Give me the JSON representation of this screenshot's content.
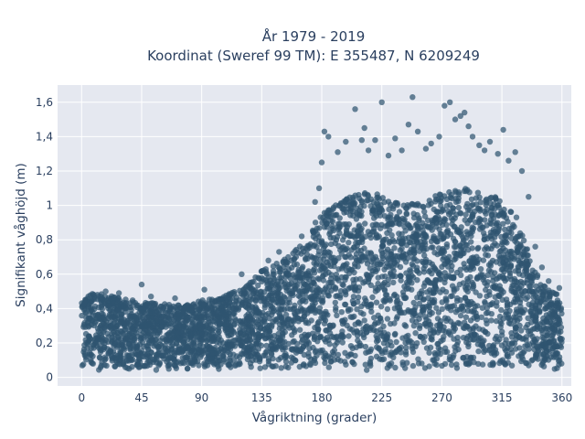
{
  "chart_data": {
    "type": "scatter",
    "title_lines": [
      "År 1979 - 2019",
      "Koordinat (Sweref 99 TM): E 355487, N 6209249"
    ],
    "xlabel": "Vågriktning (grader)",
    "ylabel": "Signifikant våghöjd (m)",
    "xlim": [
      -18,
      367
    ],
    "ylim": [
      -0.05,
      1.7
    ],
    "x_ticks": [
      0,
      45,
      90,
      135,
      180,
      225,
      270,
      315,
      360
    ],
    "y_ticks": [
      {
        "value": 0,
        "label": "0"
      },
      {
        "value": 0.2,
        "label": "0,2"
      },
      {
        "value": 0.4,
        "label": "0,4"
      },
      {
        "value": 0.6,
        "label": "0,6"
      },
      {
        "value": 0.8,
        "label": "0,8"
      },
      {
        "value": 1.0,
        "label": "1"
      },
      {
        "value": 1.2,
        "label": "1,2"
      },
      {
        "value": 1.4,
        "label": "1,4"
      },
      {
        "value": 1.6,
        "label": "1,6"
      }
    ],
    "grid": true,
    "background_color": "#e5e8f0",
    "grid_color": "#ffffff",
    "marker_color": "#2f5570",
    "envelope": [
      [
        0,
        0.45
      ],
      [
        10,
        0.5
      ],
      [
        20,
        0.48
      ],
      [
        30,
        0.46
      ],
      [
        45,
        0.44
      ],
      [
        60,
        0.43
      ],
      [
        75,
        0.42
      ],
      [
        90,
        0.45
      ],
      [
        105,
        0.47
      ],
      [
        120,
        0.52
      ],
      [
        135,
        0.62
      ],
      [
        150,
        0.68
      ],
      [
        160,
        0.74
      ],
      [
        170,
        0.8
      ],
      [
        175,
        0.9
      ],
      [
        180,
        0.95
      ],
      [
        190,
        1.0
      ],
      [
        200,
        1.05
      ],
      [
        215,
        1.08
      ],
      [
        230,
        1.05
      ],
      [
        245,
        1.0
      ],
      [
        260,
        1.05
      ],
      [
        275,
        1.08
      ],
      [
        290,
        1.1
      ],
      [
        305,
        1.08
      ],
      [
        315,
        1.02
      ],
      [
        325,
        0.95
      ],
      [
        330,
        0.85
      ],
      [
        335,
        0.72
      ],
      [
        340,
        0.62
      ],
      [
        345,
        0.55
      ],
      [
        352,
        0.5
      ],
      [
        360,
        0.48
      ]
    ],
    "outliers": [
      [
        45,
        0.54
      ],
      [
        52,
        0.47
      ],
      [
        92,
        0.51
      ],
      [
        120,
        0.6
      ],
      [
        140,
        0.68
      ],
      [
        148,
        0.73
      ],
      [
        165,
        0.82
      ],
      [
        175,
        1.02
      ],
      [
        178,
        1.1
      ],
      [
        180,
        1.25
      ],
      [
        182,
        1.43
      ],
      [
        185,
        1.4
      ],
      [
        192,
        1.31
      ],
      [
        198,
        1.37
      ],
      [
        205,
        1.56
      ],
      [
        210,
        1.38
      ],
      [
        212,
        1.45
      ],
      [
        215,
        1.32
      ],
      [
        220,
        1.38
      ],
      [
        225,
        1.6
      ],
      [
        230,
        1.29
      ],
      [
        235,
        1.39
      ],
      [
        240,
        1.32
      ],
      [
        245,
        1.47
      ],
      [
        248,
        1.63
      ],
      [
        252,
        1.43
      ],
      [
        258,
        1.33
      ],
      [
        262,
        1.36
      ],
      [
        268,
        1.4
      ],
      [
        272,
        1.58
      ],
      [
        276,
        1.6
      ],
      [
        280,
        1.5
      ],
      [
        284,
        1.52
      ],
      [
        287,
        1.54
      ],
      [
        290,
        1.46
      ],
      [
        293,
        1.4
      ],
      [
        298,
        1.35
      ],
      [
        302,
        1.32
      ],
      [
        306,
        1.37
      ],
      [
        312,
        1.3
      ],
      [
        316,
        1.44
      ],
      [
        320,
        1.26
      ],
      [
        325,
        1.31
      ],
      [
        330,
        1.2
      ],
      [
        335,
        1.05
      ],
      [
        340,
        0.76
      ],
      [
        345,
        0.64
      ],
      [
        350,
        0.56
      ],
      [
        358,
        0.52
      ],
      [
        5,
        0.47
      ],
      [
        18,
        0.5
      ],
      [
        28,
        0.49
      ],
      [
        70,
        0.46
      ],
      [
        100,
        0.44
      ]
    ]
  }
}
